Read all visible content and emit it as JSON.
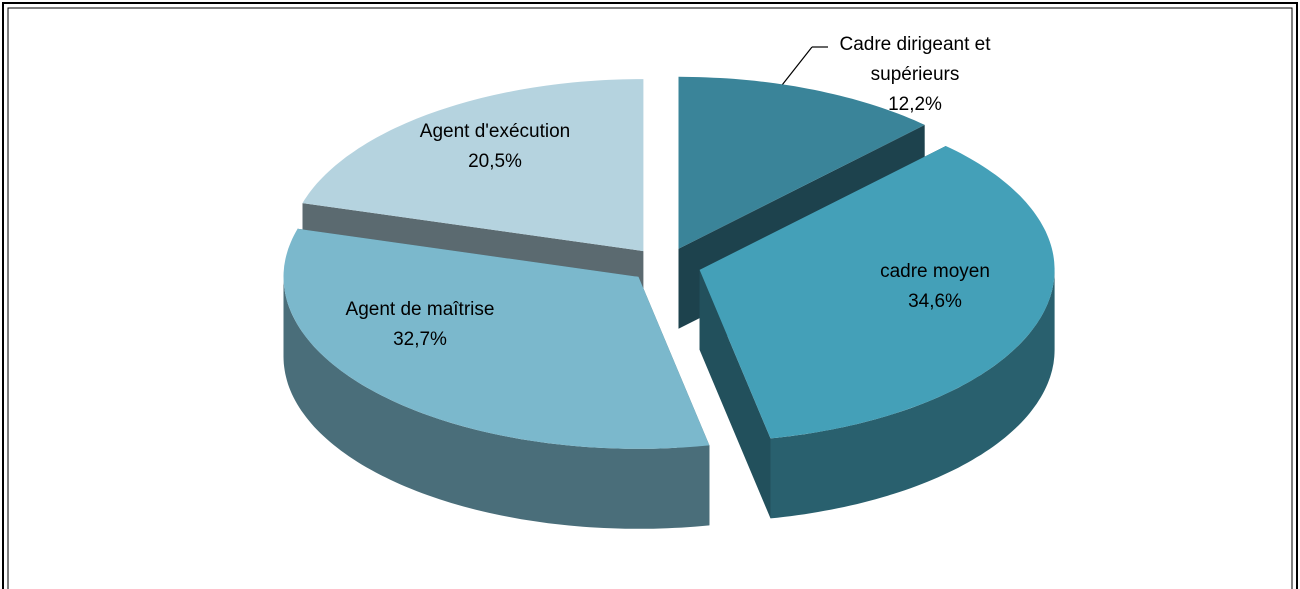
{
  "chart_data": {
    "type": "pie3d",
    "categories": [
      "Cadre dirigeant et supérieurs",
      "cadre moyen",
      "Agent de maîtrise",
      "Agent d'exécution"
    ],
    "values": [
      12.2,
      34.6,
      32.7,
      20.5
    ],
    "value_labels": [
      "12,2%",
      "34,6%",
      "32,7%",
      "20,5%"
    ],
    "colors": [
      "#3a8499",
      "#44a0b8",
      "#7bb8cc",
      "#b5d3df"
    ]
  }
}
